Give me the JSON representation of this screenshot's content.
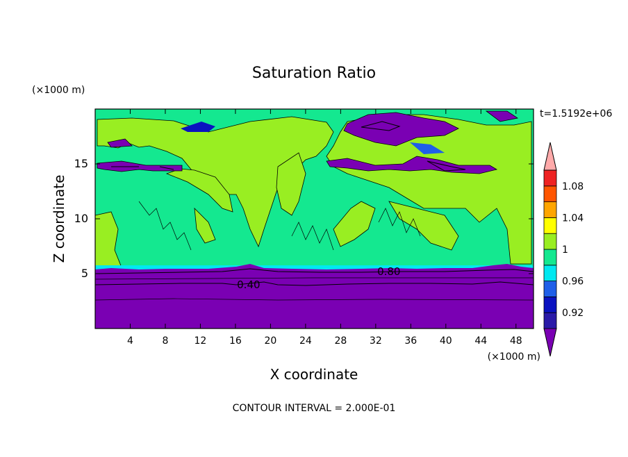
{
  "chart_data": {
    "type": "heatmap",
    "title": "Saturation Ratio",
    "xlabel": "X coordinate",
    "ylabel": "Z coordinate",
    "x_unit": "(×1000 m)",
    "y_unit": "(×1000 m)",
    "time_label": "t=1.5192e+06",
    "footer": "CONTOUR INTERVAL = 2.000E-01",
    "xlim": [
      0,
      50
    ],
    "ylim": [
      0,
      20
    ],
    "x_ticks": [
      4,
      8,
      12,
      16,
      20,
      24,
      28,
      32,
      36,
      40,
      44,
      48
    ],
    "y_ticks": [
      5,
      10,
      15
    ],
    "contour_labels": [
      {
        "text": "0.40",
        "x": 17.5,
        "y": 4.0
      },
      {
        "text": "0.80",
        "x": 33.5,
        "y": 5.2
      }
    ],
    "colorbar": {
      "labels": [
        "1.08",
        "1.04",
        "1",
        "0.96",
        "0.92"
      ],
      "colors": [
        "#7a00b3",
        "#2a1aa8",
        "#0a12c0",
        "#1f5fe8",
        "#00e8f0",
        "#14e890",
        "#99ee22",
        "#ffff00",
        "#ffa500",
        "#ff5500",
        "#ee2222",
        "#ffaaaa"
      ]
    },
    "regions": {
      "cap_color": "#7a00b3",
      "lower_color": "#14e890",
      "upper_color": "#99ee22",
      "dark_color": "#7a00b3"
    }
  }
}
